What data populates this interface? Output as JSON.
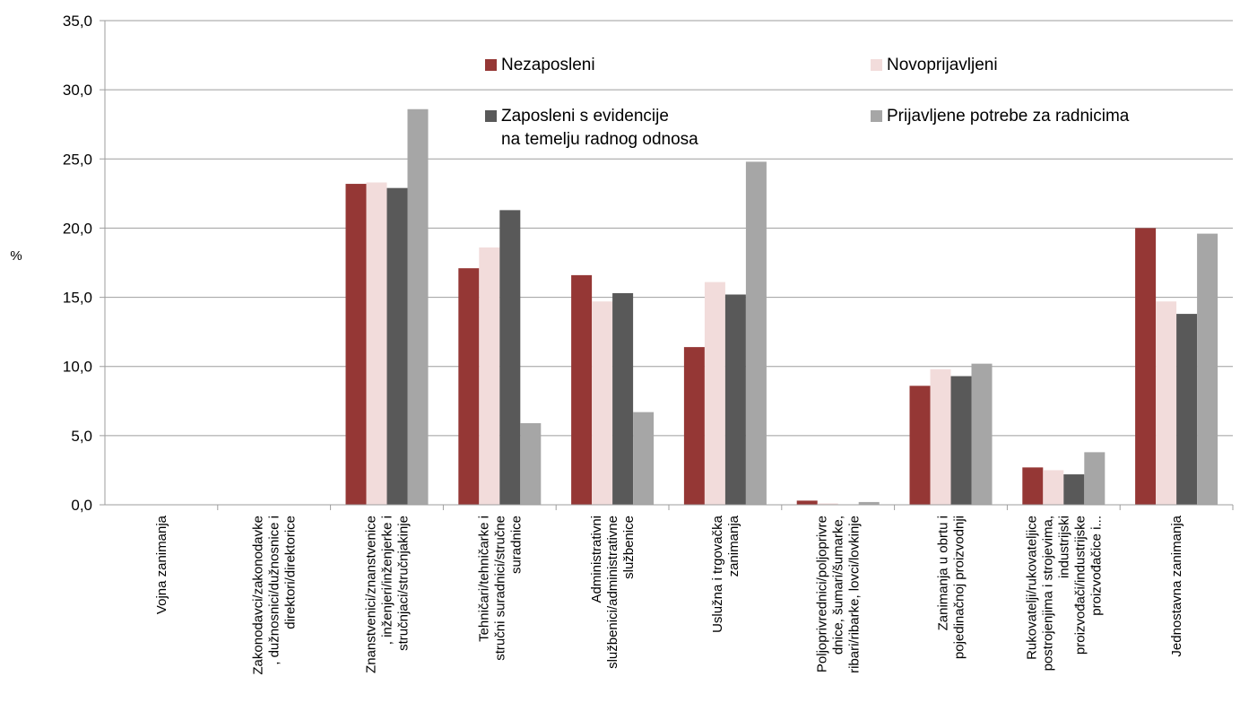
{
  "chart_data": {
    "type": "bar",
    "ylabel": "%",
    "ylim": [
      0,
      35
    ],
    "yticks": [
      "0,0",
      "5,0",
      "10,0",
      "15,0",
      "20,0",
      "25,0",
      "30,0",
      "35,0"
    ],
    "grid": true,
    "legend_position": "top",
    "categories": [
      [
        "Vojna zanimanja"
      ],
      [
        "Zakonodavci/zakonodavke",
        ", dužnosnici/dužnosnice i",
        "direktori/direktorice"
      ],
      [
        "Znanstvenici/znanstvenice",
        ", inženjeri/inženjerke i",
        "stručnjaci/stručnjakinje"
      ],
      [
        "Tehničari/tehničarke i",
        "stručni suradnici/stručne",
        "suradnice"
      ],
      [
        "Administrativni",
        "službenici/administrativne",
        "službenice"
      ],
      [
        "Uslužna i trgovačka",
        "zanimanja"
      ],
      [
        "Poljoprivrednici/poljoprivre",
        "dnice, šumari/šumarke,",
        "ribari/ribarke, lovci/lovkinje"
      ],
      [
        "Zanimanja u obrtu i",
        "pojedinačnoj proizvodnji"
      ],
      [
        "Rukovatelji/rukovateljice",
        "postrojenjima i strojevima,",
        "industrijski",
        "proizvođači/industrijske",
        "proizvođačice i..."
      ],
      [
        "Jednostavna zanimanja"
      ]
    ],
    "series": [
      {
        "name": [
          "Nezaposleni"
        ],
        "color": "#953735",
        "values": [
          0,
          0,
          23.2,
          17.1,
          16.6,
          11.4,
          0.3,
          8.6,
          2.7,
          20.0
        ]
      },
      {
        "name": [
          "Novoprijavljeni"
        ],
        "color": "#F2DCDB",
        "values": [
          0,
          0,
          23.3,
          18.6,
          14.7,
          16.1,
          0.1,
          9.8,
          2.5,
          14.7
        ]
      },
      {
        "name": [
          "Zaposleni s evidencije",
          "na temelju radnog odnosa"
        ],
        "color": "#595959",
        "values": [
          0,
          0,
          22.9,
          21.3,
          15.3,
          15.2,
          0.0,
          9.3,
          2.2,
          13.8
        ]
      },
      {
        "name": [
          "Prijavljene potrebe za radnicima"
        ],
        "color": "#A6A6A6",
        "values": [
          0,
          0,
          28.6,
          5.9,
          6.7,
          24.8,
          0.2,
          10.2,
          3.8,
          19.6
        ]
      }
    ]
  }
}
